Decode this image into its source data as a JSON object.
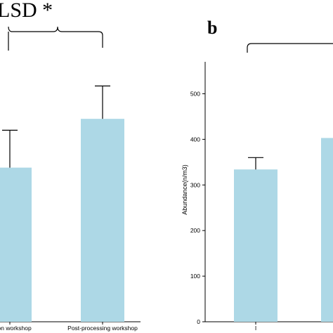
{
  "chart_data": [
    {
      "type": "bar",
      "panel_label": "",
      "title": "LSD *",
      "categories": [
        "...sion workshop",
        "Post-processing workshop"
      ],
      "values": [
        338,
        445
      ],
      "error_upper": [
        420,
        517
      ],
      "ylim": [
        0,
        570
      ],
      "xlabel": "",
      "ylabel": "",
      "bar_color": "#ADD8E6",
      "grid": false
    },
    {
      "type": "bar",
      "panel_label": "b",
      "title": "",
      "categories": [
        "I",
        ""
      ],
      "values": [
        334,
        403
      ],
      "error_upper": [
        360,
        null
      ],
      "ylim": [
        0,
        570
      ],
      "yticks": [
        0,
        100,
        200,
        300,
        400,
        500
      ],
      "xlabel": "",
      "ylabel": "Abundance(n/m3)",
      "bar_color": "#ADD8E6",
      "grid": false
    }
  ]
}
